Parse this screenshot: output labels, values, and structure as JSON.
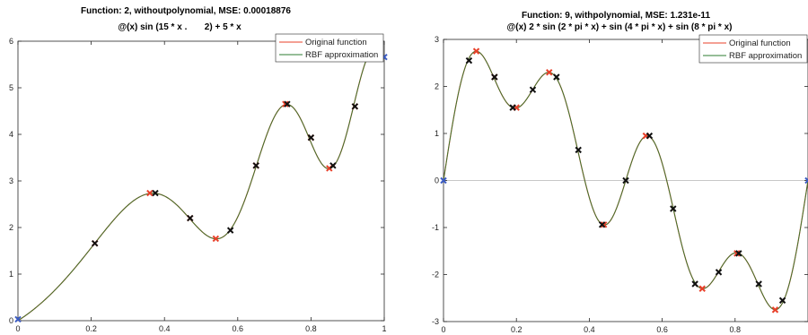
{
  "chart_data": [
    {
      "type": "line",
      "title": "Function: 2, withoutpolynomial, MSE: 0.00018876",
      "subtitle": "@(x) sin (15 * x .       2) + 5 * x",
      "xlim": [
        0,
        1
      ],
      "ylim": [
        0,
        6
      ],
      "xticks": [
        "0",
        "0.2",
        "0.4",
        "0.6",
        "0.8",
        "1"
      ],
      "yticks": [
        "0",
        "1",
        "2",
        "3",
        "4",
        "5",
        "6"
      ],
      "grid": false,
      "legend_position": "top-right",
      "series": [
        {
          "name": "Original function",
          "color": "#e8402a"
        },
        {
          "name": "RBF approximation",
          "color": "#2e7d32"
        }
      ],
      "red_markers": [
        {
          "x": 0.21,
          "y": 1.66
        },
        {
          "x": 0.36,
          "y": 2.74
        },
        {
          "x": 0.47,
          "y": 2.2
        },
        {
          "x": 0.54,
          "y": 1.76
        },
        {
          "x": 0.65,
          "y": 3.33
        },
        {
          "x": 0.73,
          "y": 4.65
        },
        {
          "x": 0.8,
          "y": 3.93
        },
        {
          "x": 0.85,
          "y": 3.27
        },
        {
          "x": 0.92,
          "y": 4.6
        }
      ],
      "black_markers": [
        {
          "x": 0.21,
          "y": 1.66
        },
        {
          "x": 0.375,
          "y": 2.74
        },
        {
          "x": 0.47,
          "y": 2.2
        },
        {
          "x": 0.58,
          "y": 1.94
        },
        {
          "x": 0.65,
          "y": 3.33
        },
        {
          "x": 0.735,
          "y": 4.65
        },
        {
          "x": 0.8,
          "y": 3.93
        },
        {
          "x": 0.86,
          "y": 3.33
        },
        {
          "x": 0.92,
          "y": 4.6
        }
      ],
      "blue_markers": [
        {
          "x": 0.0,
          "y": 0.03
        },
        {
          "x": 1.0,
          "y": 5.66
        }
      ]
    },
    {
      "type": "line",
      "title": "Function: 9, withpolynomial, MSE: 1.231e-11",
      "subtitle": "@(x) 2 * sin (2 * pi * x) + sin (4 * pi * x) + sin (8 * pi * x)",
      "xlim": [
        0,
        1
      ],
      "ylim": [
        -3,
        3
      ],
      "xticks": [
        "0",
        "0.2",
        "0.4",
        "0.6",
        "0.8"
      ],
      "yticks": [
        "-3",
        "-2",
        "-1",
        "0",
        "1",
        "2",
        "3"
      ],
      "grid": false,
      "zero_line": true,
      "legend_position": "top-right",
      "series": [
        {
          "name": "Original function",
          "color": "#e8402a"
        },
        {
          "name": "RBF approximation",
          "color": "#2e7d32"
        }
      ],
      "red_markers": [
        {
          "x": 0.09,
          "y": 2.75
        },
        {
          "x": 0.14,
          "y": 2.2
        },
        {
          "x": 0.2,
          "y": 1.55
        },
        {
          "x": 0.29,
          "y": 2.3
        },
        {
          "x": 0.44,
          "y": -0.94
        },
        {
          "x": 0.555,
          "y": 0.95
        },
        {
          "x": 0.71,
          "y": -2.3
        },
        {
          "x": 0.805,
          "y": -1.55
        },
        {
          "x": 0.91,
          "y": -2.75
        }
      ],
      "black_markers": [
        {
          "x": 0.07,
          "y": 2.55
        },
        {
          "x": 0.14,
          "y": 2.2
        },
        {
          "x": 0.19,
          "y": 1.55
        },
        {
          "x": 0.245,
          "y": 1.93
        },
        {
          "x": 0.31,
          "y": 2.2
        },
        {
          "x": 0.37,
          "y": 0.65
        },
        {
          "x": 0.5,
          "y": 0.0
        },
        {
          "x": 0.435,
          "y": -0.94
        },
        {
          "x": 0.565,
          "y": 0.95
        },
        {
          "x": 0.63,
          "y": -0.6
        },
        {
          "x": 0.69,
          "y": -2.2
        },
        {
          "x": 0.755,
          "y": -1.95
        },
        {
          "x": 0.81,
          "y": -1.55
        },
        {
          "x": 0.865,
          "y": -2.2
        },
        {
          "x": 0.93,
          "y": -2.55
        }
      ],
      "blue_markers": [
        {
          "x": 0.0,
          "y": 0.0
        },
        {
          "x": 1.0,
          "y": 0.0
        }
      ]
    }
  ]
}
